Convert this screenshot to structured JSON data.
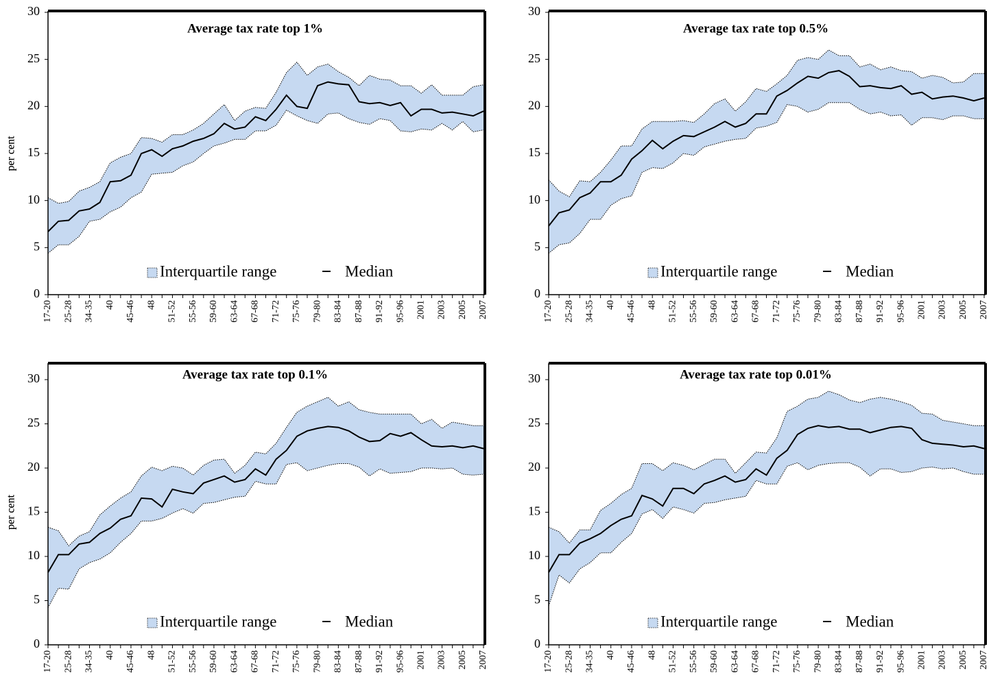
{
  "chart_data": [
    {
      "type": "range-line",
      "title": "Average tax rate top 1%",
      "y_label": "per cent",
      "legend": "bottom",
      "categories": [
        "17-20",
        null,
        "25-28",
        null,
        "34-35",
        null,
        "40",
        null,
        "45-46",
        null,
        "48",
        null,
        "51-52",
        null,
        "55-56",
        null,
        "59-60",
        null,
        "63-64",
        null,
        "67-68",
        null,
        "71-72",
        null,
        "75-76",
        null,
        "79-80",
        null,
        "83-84",
        null,
        "87-88",
        null,
        "91-92",
        null,
        "95-96",
        null,
        "2001",
        null,
        "2003",
        null,
        "2005",
        null,
        "2007"
      ],
      "ylim": [
        0,
        30
      ],
      "yticks": [
        0,
        5,
        10,
        15,
        20,
        25,
        30
      ],
      "series": [
        {
          "name": "Interquartile range",
          "color": "#c6d9f1",
          "high": [
            10.3,
            9.7,
            9.9,
            11.0,
            11.4,
            12.0,
            14.0,
            14.6,
            15.0,
            16.7,
            16.6,
            16.2,
            17.0,
            17.0,
            17.5,
            18.2,
            19.2,
            20.2,
            18.5,
            19.5,
            19.9,
            19.8,
            21.5,
            23.6,
            24.7,
            23.3,
            24.2,
            24.5,
            23.7,
            23.1,
            22.2,
            23.3,
            22.9,
            22.8,
            22.2,
            22.2,
            21.4,
            22.3,
            21.2,
            21.2,
            21.2,
            22.1,
            22.3
          ],
          "low": [
            4.4,
            5.3,
            5.3,
            6.2,
            7.8,
            8.0,
            8.8,
            9.3,
            10.3,
            10.9,
            12.8,
            12.9,
            13.0,
            13.7,
            14.1,
            15.0,
            15.8,
            16.1,
            16.5,
            16.5,
            17.4,
            17.4,
            18.0,
            19.6,
            19.0,
            18.5,
            18.2,
            19.2,
            19.3,
            18.7,
            18.3,
            18.1,
            18.7,
            18.5,
            17.4,
            17.3,
            17.6,
            17.5,
            18.2,
            17.5,
            18.4,
            17.3,
            17.5
          ]
        },
        {
          "name": "Median",
          "color": "#000000",
          "values": [
            6.7,
            7.8,
            7.9,
            8.9,
            9.1,
            9.8,
            12.0,
            12.1,
            12.7,
            15.0,
            15.4,
            14.7,
            15.5,
            15.8,
            16.3,
            16.6,
            17.1,
            18.2,
            17.6,
            17.8,
            18.9,
            18.5,
            19.7,
            21.2,
            20.0,
            19.8,
            22.2,
            22.6,
            22.4,
            22.3,
            20.5,
            20.3,
            20.4,
            20.1,
            20.4,
            19.0,
            19.7,
            19.7,
            19.3,
            19.4,
            19.2,
            19.0,
            19.5
          ]
        }
      ]
    },
    {
      "type": "range-line",
      "title": "Average tax rate top 0.5%",
      "y_label": "per cent",
      "legend": "bottom",
      "categories": [
        "17-20",
        null,
        "25-28",
        null,
        "34-35",
        null,
        "40",
        null,
        "45-46",
        null,
        "48",
        null,
        "51-52",
        null,
        "55-56",
        null,
        "59-60",
        null,
        "63-64",
        null,
        "67-68",
        null,
        "71-72",
        null,
        "75-76",
        null,
        "79-80",
        null,
        "83-84",
        null,
        "87-88",
        null,
        "91-92",
        null,
        "95-96",
        null,
        "2001",
        null,
        "2003",
        null,
        "2005",
        null,
        "2007"
      ],
      "ylim": [
        0,
        30
      ],
      "yticks": [
        0,
        5,
        10,
        15,
        20,
        25,
        30
      ],
      "series": [
        {
          "name": "Interquartile range",
          "color": "#c6d9f1",
          "high": [
            12.2,
            11.0,
            10.4,
            12.1,
            12.0,
            13.0,
            14.3,
            15.8,
            15.8,
            17.6,
            18.4,
            18.4,
            18.4,
            18.5,
            18.3,
            19.2,
            20.3,
            20.8,
            19.5,
            20.5,
            21.9,
            21.6,
            22.4,
            23.3,
            24.9,
            25.2,
            25.0,
            26.0,
            25.4,
            25.4,
            24.2,
            24.5,
            23.9,
            24.2,
            23.8,
            23.7,
            23.0,
            23.3,
            23.1,
            22.5,
            22.6,
            23.5,
            23.5
          ],
          "low": [
            4.4,
            5.3,
            5.5,
            6.5,
            8.0,
            8.0,
            9.5,
            10.2,
            10.5,
            13.0,
            13.5,
            13.4,
            14.0,
            15.0,
            14.8,
            15.7,
            16.0,
            16.3,
            16.5,
            16.6,
            17.7,
            17.9,
            18.3,
            20.2,
            20.0,
            19.4,
            19.7,
            20.4,
            20.4,
            20.4,
            19.7,
            19.2,
            19.4,
            19.0,
            19.1,
            18.0,
            18.8,
            18.8,
            18.6,
            19.0,
            19.0,
            18.7,
            18.7
          ]
        },
        {
          "name": "Median",
          "color": "#000000",
          "values": [
            7.3,
            8.7,
            9.0,
            10.3,
            10.8,
            12.0,
            12.0,
            12.7,
            14.4,
            15.3,
            16.4,
            15.5,
            16.3,
            16.9,
            16.8,
            17.3,
            17.8,
            18.4,
            17.8,
            18.2,
            19.2,
            19.2,
            21.1,
            21.7,
            22.5,
            23.2,
            23.0,
            23.6,
            23.8,
            23.2,
            22.1,
            22.2,
            22.0,
            21.9,
            22.2,
            21.3,
            21.5,
            20.8,
            21.0,
            21.1,
            20.9,
            20.6,
            20.9
          ]
        }
      ]
    },
    {
      "type": "range-line",
      "title": "Average tax rate top 0.1%",
      "y_label": "per cent",
      "legend": "bottom",
      "categories": [
        "17-20",
        null,
        "25-28",
        null,
        "34-35",
        null,
        "40",
        null,
        "45-46",
        null,
        "48",
        null,
        "51-52",
        null,
        "55-56",
        null,
        "59-60",
        null,
        "63-64",
        null,
        "67-68",
        null,
        "71-72",
        null,
        "75-76",
        null,
        "79-80",
        null,
        "83-84",
        null,
        "87-88",
        null,
        "91-92",
        null,
        "95-96",
        null,
        "2001",
        null,
        "2003",
        null,
        "2005",
        null,
        "2007"
      ],
      "ylim": [
        0,
        30
      ],
      "yticks": [
        0,
        5,
        10,
        15,
        20,
        25,
        30
      ],
      "series": [
        {
          "name": "Interquartile range",
          "color": "#c6d9f1",
          "high": [
            13.3,
            12.9,
            11.2,
            12.3,
            12.8,
            14.7,
            15.7,
            16.6,
            17.3,
            19.1,
            20.1,
            19.7,
            20.2,
            20.0,
            19.2,
            20.3,
            20.9,
            21.0,
            19.4,
            20.3,
            21.8,
            21.6,
            22.8,
            24.6,
            26.3,
            27.0,
            27.5,
            28.0,
            27.0,
            27.5,
            26.6,
            26.3,
            26.1,
            26.1,
            26.1,
            26.1,
            25.0,
            25.5,
            24.5,
            25.2,
            25.0,
            24.8,
            24.8
          ],
          "low": [
            4.2,
            6.4,
            6.3,
            8.6,
            9.3,
            9.7,
            10.4,
            11.6,
            12.6,
            14.0,
            14.0,
            14.3,
            14.9,
            15.4,
            14.9,
            16.0,
            16.1,
            16.4,
            16.7,
            16.8,
            18.5,
            18.2,
            18.2,
            20.4,
            20.6,
            19.7,
            20.0,
            20.3,
            20.5,
            20.5,
            20.1,
            19.1,
            19.9,
            19.4,
            19.5,
            19.6,
            20.0,
            20.0,
            19.9,
            20.0,
            19.3,
            19.2,
            19.3
          ]
        },
        {
          "name": "Median",
          "color": "#000000",
          "values": [
            8.2,
            10.2,
            10.2,
            11.4,
            11.6,
            12.6,
            13.2,
            14.2,
            14.6,
            16.6,
            16.5,
            15.6,
            17.6,
            17.3,
            17.1,
            18.3,
            18.7,
            19.1,
            18.4,
            18.7,
            19.9,
            19.2,
            21.0,
            22.0,
            23.6,
            24.2,
            24.5,
            24.7,
            24.6,
            24.2,
            23.5,
            23.0,
            23.1,
            23.9,
            23.6,
            24.0,
            23.2,
            22.5,
            22.4,
            22.5,
            22.3,
            22.5,
            22.2
          ]
        }
      ]
    },
    {
      "type": "range-line",
      "title": "Average tax rate top 0.01%",
      "y_label": "per cent",
      "legend": "bottom",
      "categories": [
        "17-20",
        null,
        "25-28",
        null,
        "34-35",
        null,
        "40",
        null,
        "45-46",
        null,
        "48",
        null,
        "51-52",
        null,
        "55-56",
        null,
        "59-60",
        null,
        "63-64",
        null,
        "67-68",
        null,
        "71-72",
        null,
        "75-76",
        null,
        "79-80",
        null,
        "83-84",
        null,
        "87-88",
        null,
        "91-92",
        null,
        "95-96",
        null,
        "2001",
        null,
        "2003",
        null,
        "2005",
        null,
        "2007"
      ],
      "ylim": [
        0,
        30
      ],
      "yticks": [
        0,
        5,
        10,
        15,
        20,
        25,
        30
      ],
      "series": [
        {
          "name": "Interquartile range",
          "color": "#c6d9f1",
          "high": [
            13.3,
            12.8,
            11.5,
            13.0,
            13.0,
            15.2,
            16.0,
            17.0,
            17.7,
            20.5,
            20.5,
            19.7,
            20.6,
            20.3,
            19.8,
            20.4,
            21.0,
            21.0,
            19.4,
            20.6,
            21.8,
            21.7,
            23.4,
            26.4,
            27.0,
            27.8,
            28.0,
            28.7,
            28.3,
            27.7,
            27.4,
            27.8,
            28.0,
            27.8,
            27.5,
            27.1,
            26.2,
            26.1,
            25.4,
            25.2,
            25.0,
            24.8,
            24.8
          ],
          "low": [
            4.4,
            7.9,
            7.0,
            8.6,
            9.3,
            10.4,
            10.4,
            11.6,
            12.6,
            14.8,
            15.3,
            14.3,
            15.6,
            15.3,
            14.9,
            16.0,
            16.1,
            16.4,
            16.6,
            16.8,
            18.6,
            18.2,
            18.2,
            20.2,
            20.6,
            19.8,
            20.3,
            20.5,
            20.6,
            20.6,
            20.1,
            19.1,
            19.9,
            19.9,
            19.5,
            19.6,
            20.0,
            20.1,
            19.9,
            20.0,
            19.6,
            19.3,
            19.3
          ]
        },
        {
          "name": "Median",
          "color": "#000000",
          "values": [
            8.2,
            10.2,
            10.2,
            11.5,
            12.0,
            12.6,
            13.5,
            14.2,
            14.6,
            16.9,
            16.5,
            15.7,
            17.7,
            17.7,
            17.1,
            18.2,
            18.6,
            19.1,
            18.4,
            18.7,
            19.9,
            19.2,
            21.1,
            22.0,
            23.8,
            24.5,
            24.8,
            24.6,
            24.7,
            24.4,
            24.4,
            24.0,
            24.3,
            24.6,
            24.7,
            24.5,
            23.2,
            22.8,
            22.7,
            22.6,
            22.4,
            22.5,
            22.2
          ]
        }
      ]
    }
  ]
}
